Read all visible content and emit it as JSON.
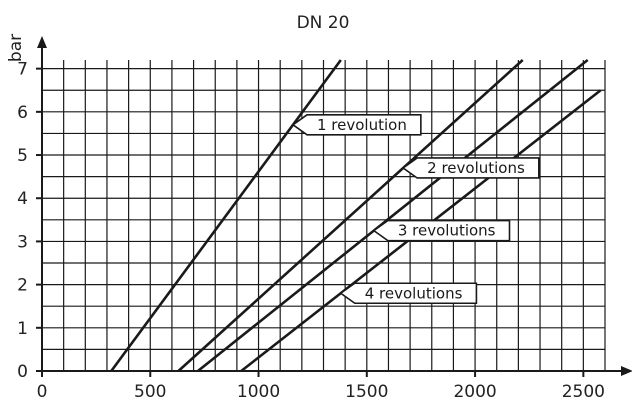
{
  "chart_data": {
    "type": "line",
    "title": "DN 20",
    "ylabel": "bar",
    "xlabel": "",
    "xlim": [
      0,
      2600
    ],
    "ylim": [
      0,
      7.2
    ],
    "x_ticks": [
      0,
      500,
      1000,
      1500,
      2000,
      2500
    ],
    "y_ticks": [
      0,
      1,
      2,
      3,
      4,
      5,
      6,
      7
    ],
    "grid": true,
    "minor_x_step": 100,
    "minor_y_step": 0.5,
    "series": [
      {
        "name": "1 revolution",
        "x": [
          320,
          1380
        ],
        "y": [
          0,
          7.2
        ]
      },
      {
        "name": "2 revolutions",
        "x": [
          630,
          2220
        ],
        "y": [
          0,
          7.2
        ]
      },
      {
        "name": "3 revolutions",
        "x": [
          720,
          2520
        ],
        "y": [
          0,
          7.2
        ]
      },
      {
        "name": "4 revolutions",
        "x": [
          920,
          2580
        ],
        "y": [
          0,
          6.5
        ]
      }
    ],
    "annotations": [
      {
        "text": "1 revolution",
        "series": 0,
        "at_y": 5.7
      },
      {
        "text": "2 revolutions",
        "series": 1,
        "at_y": 4.7
      },
      {
        "text": "3 revolutions",
        "series": 2,
        "at_y": 3.25
      },
      {
        "text": "4 revolutions",
        "series": 3,
        "at_y": 1.8
      }
    ]
  }
}
